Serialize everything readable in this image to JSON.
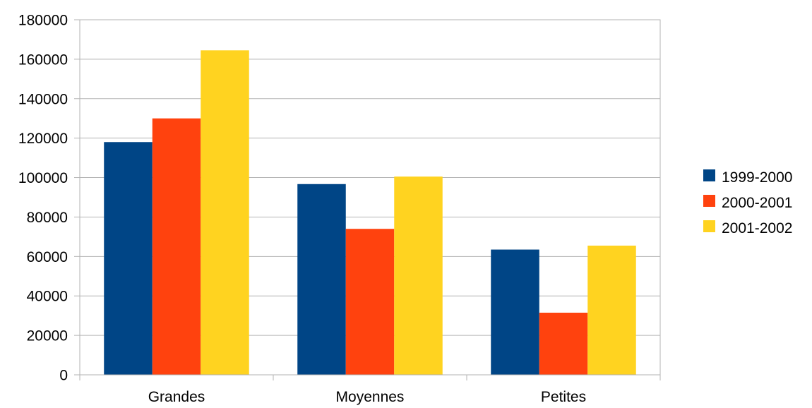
{
  "chart_data": {
    "type": "bar",
    "title": "",
    "xlabel": "",
    "ylabel": "",
    "categories": [
      "Grandes",
      "Moyennes",
      "Petites"
    ],
    "series": [
      {
        "name": "1999-2000",
        "color": "#004586",
        "values": [
          118000,
          96700,
          63500
        ]
      },
      {
        "name": "2000-2001",
        "color": "#ff420e",
        "values": [
          130000,
          74000,
          31500
        ]
      },
      {
        "name": "2001-2002",
        "color": "#ffd320",
        "values": [
          164500,
          100500,
          65500
        ]
      }
    ],
    "ylim": [
      0,
      180000
    ],
    "yticks": [
      0,
      20000,
      40000,
      60000,
      80000,
      100000,
      120000,
      140000,
      160000,
      180000
    ],
    "grid": true,
    "legend_position": "right"
  }
}
